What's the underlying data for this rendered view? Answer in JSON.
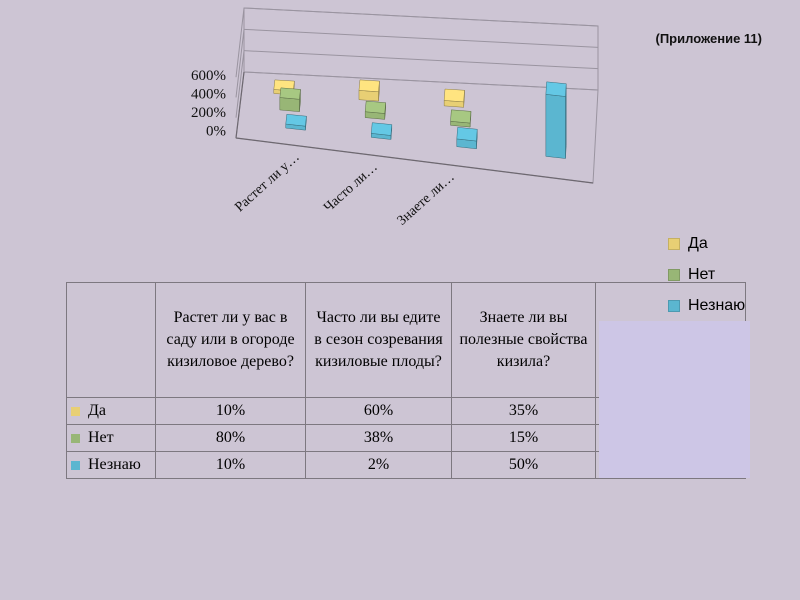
{
  "header": {
    "appendix_label": "(Приложение 11)"
  },
  "chart_data": {
    "type": "bar",
    "categories": [
      "Растет ли у…",
      "Часто ли…",
      "Знаете ли…",
      ""
    ],
    "yticks": [
      "600%",
      "400%",
      "200%",
      "0%"
    ],
    "ylim": [
      0,
      600
    ],
    "series": [
      {
        "name": "Да",
        "color": "#e8cf74",
        "values": [
          10,
          60,
          35,
          0
        ]
      },
      {
        "name": "Нет",
        "color": "#98b676",
        "values": [
          80,
          38,
          15,
          0
        ]
      },
      {
        "name": "Незнаю",
        "color": "#5bb6d0",
        "values": [
          10,
          2,
          50,
          600
        ]
      }
    ],
    "legend": "right",
    "grid": true
  },
  "table": {
    "headers": [
      "",
      "Растет ли у вас в саду или в огороде кизиловое дерево?",
      "Часто ли вы едите в сезон созревания кизиловые плоды?",
      "Знаете ли вы полезные свойства кизила?",
      ""
    ],
    "rows": [
      {
        "label": "Да",
        "color": "#e8cf74",
        "cells": [
          "10%",
          "60%",
          "35%",
          ""
        ]
      },
      {
        "label": "Нет",
        "color": "#98b676",
        "cells": [
          "80%",
          "38%",
          "15%",
          ""
        ]
      },
      {
        "label": "Незнаю",
        "color": "#5bb6d0",
        "cells": [
          "10%",
          "2%",
          "50%",
          ""
        ]
      }
    ]
  }
}
